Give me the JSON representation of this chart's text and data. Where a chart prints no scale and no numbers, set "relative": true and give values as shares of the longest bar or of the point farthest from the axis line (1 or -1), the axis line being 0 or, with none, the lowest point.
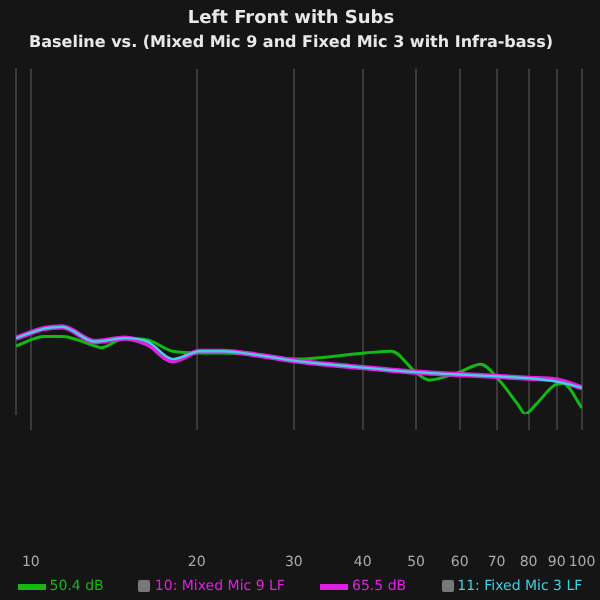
{
  "chart_data": {
    "type": "line",
    "title": "Left Front with Subs",
    "subtitle": "Baseline vs. (Mixed Mic 9 and Fixed Mic 3 with Infra-bass)",
    "relative": true,
    "log": "x",
    "grid": "x",
    "legend": "bottom",
    "marker": "none",
    "line_style": "solid",
    "xlim": [
      9.4,
      100
    ],
    "xticks": [
      10,
      20,
      30,
      40,
      50,
      60,
      70,
      80,
      90,
      100
    ],
    "annotations": [
      "50.4 dB",
      "65.5 dB"
    ],
    "series": [
      {
        "color": "#14b814",
        "x": [
          9.4,
          10.57,
          11.4,
          13.07,
          13.39,
          14.8,
          16.3,
          18.1,
          20.3,
          22.3,
          26.2,
          30.2,
          40.4,
          45.1,
          49.9,
          52.8,
          59.9,
          65.5,
          70.7,
          76.5,
          78.9,
          82.5,
          89.1,
          92.4,
          100
        ],
        "values": [
          0.78,
          0.89,
          0.89,
          0.78,
          0.76,
          0.87,
          0.85,
          0.72,
          0.7,
          0.7,
          0.67,
          0.63,
          0.7,
          0.72,
          0.48,
          0.39,
          0.48,
          0.57,
          0.39,
          0.11,
          0,
          0.11,
          0.33,
          0.35,
          0.07
        ]
      },
      {
        "name": "10: Mixed Mic 9 LF",
        "color": "#e020e0",
        "x": [
          9.4,
          10.57,
          11.4,
          13.07,
          14.8,
          16.3,
          18.1,
          20.3,
          22.3,
          26.2,
          30.2,
          38.8,
          49.9,
          70.7,
          80,
          90.2,
          100
        ],
        "values": [
          0.87,
          0.98,
          1,
          0.83,
          0.87,
          0.8,
          0.61,
          0.72,
          0.72,
          0.67,
          0.61,
          0.54,
          0.48,
          0.43,
          0.41,
          0.39,
          0.3
        ]
      },
      {
        "name": "11: Fixed Mic 3 LF",
        "color": "#40d0e0",
        "x": [
          9.4,
          10.57,
          11.4,
          13.07,
          14.8,
          16.3,
          18.1,
          20.3,
          22.3,
          26.2,
          30.2,
          38.8,
          49.9,
          70.7,
          80,
          90.2,
          100
        ],
        "values": [
          0.87,
          0.98,
          1,
          0.83,
          0.87,
          0.83,
          0.63,
          0.72,
          0.72,
          0.67,
          0.61,
          0.54,
          0.48,
          0.43,
          0.41,
          0.37,
          0.3
        ]
      }
    ]
  }
}
